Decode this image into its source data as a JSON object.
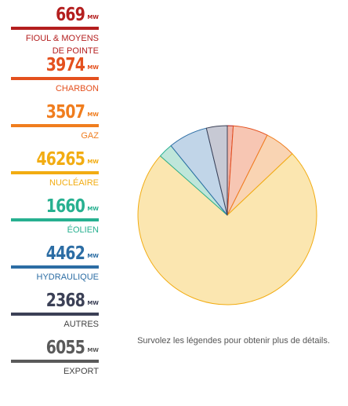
{
  "unit": "MW",
  "hint": "Survolez les légendes pour obtenir plus de détails.",
  "legend": [
    {
      "value": "669",
      "lines": [
        "FIOUL & MOYENS",
        "DE POINTE"
      ],
      "color": "#b41e1e",
      "fill": "#f1b3a6"
    },
    {
      "value": "3974",
      "lines": [
        "CHARBON"
      ],
      "color": "#e4501e",
      "fill": "#f7c6b3"
    },
    {
      "value": "3507",
      "lines": [
        "GAZ"
      ],
      "color": "#f07d1e",
      "fill": "#f9d4b3"
    },
    {
      "value": "46265",
      "lines": [
        "NUCLÉAIRE"
      ],
      "color": "#f2ac12",
      "fill": "#fbe6b0"
    },
    {
      "value": "1660",
      "lines": [
        "ÉOLIEN"
      ],
      "color": "#27b090",
      "fill": "#bfe6da"
    },
    {
      "value": "4462",
      "lines": [
        "HYDRAULIQUE"
      ],
      "color": "#2c6da4",
      "fill": "#c1d5e8"
    },
    {
      "value": "2368",
      "lines": [
        "AUTRES"
      ],
      "color": "#3b4056",
      "fill": "#c7c9d4"
    },
    {
      "value": "6055",
      "lines": [
        "EXPORT"
      ],
      "color": "#5a5a5a",
      "fill": "#d5d5d5"
    }
  ],
  "chart_data": {
    "type": "pie",
    "unit": "MW",
    "labels": [
      "FIOUL & MOYENS DE POINTE",
      "CHARBON",
      "GAZ",
      "NUCLÉAIRE",
      "ÉOLIEN",
      "HYDRAULIQUE",
      "AUTRES"
    ],
    "values": [
      669,
      3974,
      3507,
      46265,
      1660,
      4462,
      2368
    ],
    "not_in_pie": [
      "EXPORT"
    ],
    "start": "12 o'clock",
    "direction": "clockwise"
  }
}
